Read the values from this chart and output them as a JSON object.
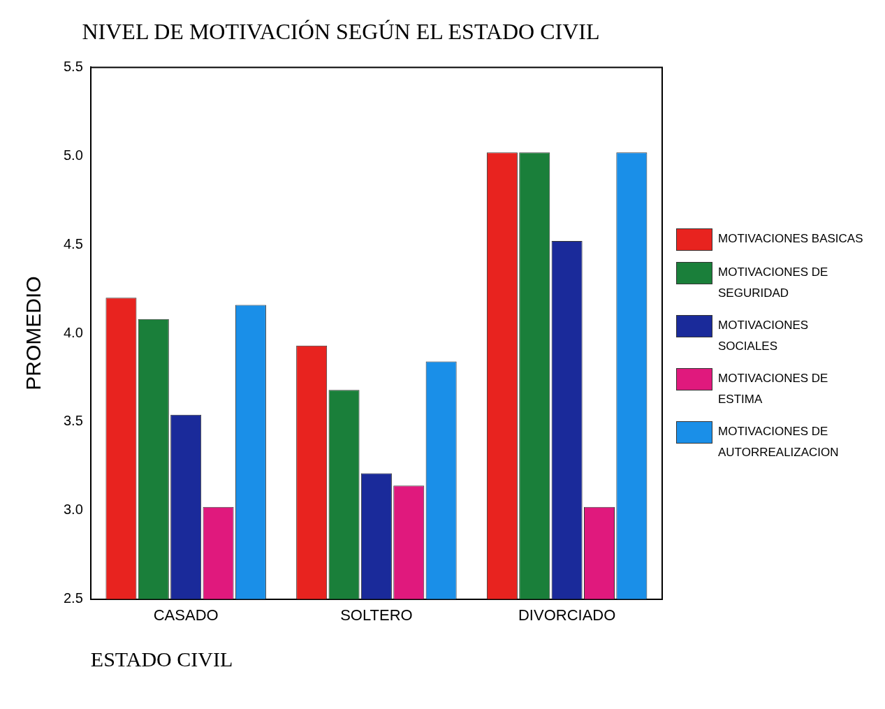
{
  "chart_data": {
    "type": "bar",
    "title": "NIVEL DE MOTIVACIÓN SEGÚN EL ESTADO CIVIL",
    "xlabel": "ESTADO CIVIL",
    "ylabel": "PROMEDIO",
    "categories": [
      "CASADO",
      "SOLTERO",
      "DIVORCIADO"
    ],
    "series": [
      {
        "name": "MOTIVACIONES BASICAS",
        "color": "#e8231f",
        "values": [
          4.2,
          3.93,
          5.02
        ]
      },
      {
        "name": "MOTIVACIONES DE SEGURIDAD",
        "color": "#1a7f3a",
        "values": [
          4.08,
          3.68,
          5.02
        ]
      },
      {
        "name": "MOTIVACIONES SOCIALES",
        "color": "#1a2a9a",
        "values": [
          3.54,
          3.21,
          4.52
        ]
      },
      {
        "name": "MOTIVACIONES DE ESTIMA",
        "color": "#e0197d",
        "values": [
          3.02,
          3.14,
          3.02
        ]
      },
      {
        "name": "MOTIVACIONES DE AUTORREALIZACION",
        "color": "#1a8fe8",
        "values": [
          4.16,
          3.84,
          5.02
        ]
      }
    ],
    "ylim": [
      2.5,
      5.5
    ],
    "yticks": [
      2.5,
      {
        "value": 3,
        "label": "3.0"
      },
      3.5,
      {
        "value": 4,
        "label": "4.0"
      },
      4.5,
      {
        "value": 5,
        "label": "5.0"
      },
      5.5
    ],
    "grid": false,
    "legend": "right"
  }
}
